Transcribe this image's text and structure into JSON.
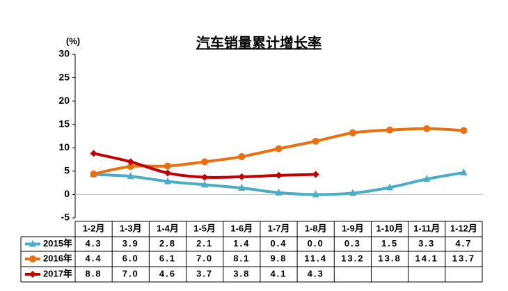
{
  "chart_data": {
    "type": "line",
    "title": "汽车销量累计增长率",
    "y_label": "(%)",
    "categories": [
      "1-2月",
      "1-3月",
      "1-4月",
      "1-5月",
      "1-6月",
      "1-7月",
      "1-8月",
      "1-9月",
      "1-10月",
      "1-11月",
      "1-12月"
    ],
    "ylim": [
      -5,
      30
    ],
    "yticks": [
      -5,
      0,
      5,
      10,
      15,
      20,
      25,
      30
    ],
    "grid": false,
    "series": [
      {
        "name": "2015年",
        "color": "#4bacc6",
        "marker": "triangle",
        "values": [
          4.3,
          3.9,
          2.8,
          2.1,
          1.4,
          0.4,
          0.0,
          0.3,
          1.5,
          3.3,
          4.7
        ],
        "value_labels": [
          "4.3",
          "3.9",
          "2.8",
          "2.1",
          "1.4",
          "0.4",
          "0.0",
          "0.3",
          "1.5",
          "3.3",
          "4.7"
        ]
      },
      {
        "name": "2016年",
        "color": "#e8700f",
        "marker": "circle",
        "values": [
          4.4,
          6.0,
          6.1,
          7.0,
          8.1,
          9.8,
          11.4,
          13.2,
          13.8,
          14.1,
          13.7
        ],
        "value_labels": [
          "4.4",
          "6.0",
          "6.1",
          "7.0",
          "8.1",
          "9.8",
          "11.4",
          "13.2",
          "13.8",
          "14.1",
          "13.7"
        ]
      },
      {
        "name": "2017年",
        "color": "#c00000",
        "marker": "diamond",
        "values": [
          8.8,
          7.0,
          4.6,
          3.7,
          3.8,
          4.1,
          4.3,
          null,
          null,
          null,
          null
        ],
        "value_labels": [
          "8.8",
          "7.0",
          "4.6",
          "3.7",
          "3.8",
          "4.1",
          "4.3",
          null,
          null,
          null,
          null
        ]
      }
    ]
  }
}
